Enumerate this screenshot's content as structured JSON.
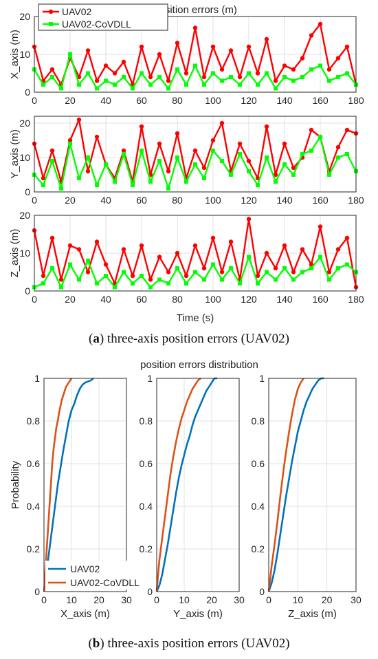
{
  "figure_a": {
    "caption_letter": "a",
    "caption_text": ") three-axis position errors (UAV02)",
    "title": "position errors (m)",
    "xlabel": "Time (s)",
    "legend": [
      "UAV02",
      "UAV02-CoVDLL"
    ]
  },
  "figure_b": {
    "caption_letter": "b",
    "caption_text": ") three-axis position errors (UAV02)",
    "title": "position errors distribution",
    "ylabel": "Probability",
    "legend": [
      "UAV02",
      "UAV02-CoVDLL"
    ]
  },
  "colors": {
    "red": "#ff0000",
    "green": "#00ff00",
    "blue": "#0072bd",
    "orange": "#d95319"
  },
  "chart_data": [
    {
      "type": "line",
      "panel": "X_axis",
      "ylabel": "X_axis (m)",
      "xlim": [
        0,
        180
      ],
      "ylim": [
        0,
        20
      ],
      "xticks": [
        0,
        20,
        40,
        60,
        80,
        100,
        120,
        140,
        160,
        180
      ],
      "yticks": [
        0,
        10,
        20
      ],
      "series": [
        {
          "name": "UAV02",
          "x": [
            0,
            5,
            10,
            15,
            20,
            25,
            30,
            35,
            40,
            45,
            50,
            55,
            60,
            65,
            70,
            75,
            80,
            85,
            90,
            95,
            100,
            105,
            110,
            115,
            120,
            125,
            130,
            135,
            140,
            145,
            150,
            155,
            160,
            165,
            170,
            175,
            180
          ],
          "values": [
            12,
            3,
            6,
            2,
            9,
            4,
            11,
            3,
            7,
            5,
            8,
            2,
            12,
            4,
            10,
            3,
            13,
            5,
            17,
            4,
            12,
            6,
            11,
            4,
            12,
            5,
            14,
            3,
            7,
            6,
            9,
            15,
            18,
            6,
            9,
            12,
            2
          ]
        },
        {
          "name": "UAV02-CoVDLL",
          "x": [
            0,
            5,
            10,
            15,
            20,
            25,
            30,
            35,
            40,
            45,
            50,
            55,
            60,
            65,
            70,
            75,
            80,
            85,
            90,
            95,
            100,
            105,
            110,
            115,
            120,
            125,
            130,
            135,
            140,
            145,
            150,
            155,
            160,
            165,
            170,
            175,
            180
          ],
          "values": [
            6,
            2,
            4,
            1,
            10,
            2,
            5,
            1,
            3,
            2,
            4,
            1,
            5,
            2,
            4,
            1,
            6,
            2,
            7,
            2,
            5,
            3,
            4,
            2,
            5,
            2,
            5,
            1,
            4,
            3,
            4,
            6,
            7,
            3,
            4,
            5,
            2
          ]
        }
      ]
    },
    {
      "type": "line",
      "panel": "Y_axis",
      "ylabel": "Y_axis (m)",
      "xlim": [
        0,
        180
      ],
      "ylim": [
        0,
        22
      ],
      "xticks": [
        0,
        20,
        40,
        60,
        80,
        100,
        120,
        140,
        160,
        180
      ],
      "yticks": [
        0,
        10,
        20
      ],
      "series": [
        {
          "name": "UAV02",
          "x": [
            0,
            5,
            10,
            15,
            20,
            25,
            30,
            35,
            40,
            45,
            50,
            55,
            60,
            65,
            70,
            75,
            80,
            85,
            90,
            95,
            100,
            105,
            110,
            115,
            120,
            125,
            130,
            135,
            140,
            145,
            150,
            155,
            160,
            165,
            170,
            175,
            180
          ],
          "values": [
            14,
            4,
            12,
            3,
            15,
            21,
            6,
            16,
            8,
            4,
            12,
            3,
            19,
            5,
            14,
            6,
            17,
            4,
            12,
            7,
            15,
            20,
            6,
            14,
            9,
            4,
            19,
            5,
            14,
            7,
            10,
            18,
            16,
            6,
            13,
            18,
            17
          ]
        },
        {
          "name": "UAV02-CoVDLL",
          "x": [
            0,
            5,
            10,
            15,
            20,
            25,
            30,
            35,
            40,
            45,
            50,
            55,
            60,
            65,
            70,
            75,
            80,
            85,
            90,
            95,
            100,
            105,
            110,
            115,
            120,
            125,
            130,
            135,
            140,
            145,
            150,
            155,
            160,
            165,
            170,
            175,
            180
          ],
          "values": [
            5,
            2,
            9,
            1,
            14,
            4,
            10,
            2,
            8,
            3,
            11,
            2,
            12,
            3,
            9,
            1,
            10,
            3,
            8,
            4,
            12,
            9,
            5,
            11,
            6,
            2,
            10,
            3,
            8,
            5,
            11,
            12,
            16,
            5,
            10,
            11,
            6
          ]
        }
      ]
    },
    {
      "type": "line",
      "panel": "Z_axis",
      "ylabel": "Z_axis (m)",
      "xlim": [
        0,
        180
      ],
      "ylim": [
        0,
        20
      ],
      "xticks": [
        0,
        20,
        40,
        60,
        80,
        100,
        120,
        140,
        160,
        180
      ],
      "yticks": [
        0,
        10,
        20
      ],
      "series": [
        {
          "name": "UAV02",
          "x": [
            0,
            5,
            10,
            15,
            20,
            25,
            30,
            35,
            40,
            45,
            50,
            55,
            60,
            65,
            70,
            75,
            80,
            85,
            90,
            95,
            100,
            105,
            110,
            115,
            120,
            125,
            130,
            135,
            140,
            145,
            150,
            155,
            160,
            165,
            170,
            175,
            180
          ],
          "values": [
            16,
            4,
            14,
            3,
            12,
            11,
            5,
            13,
            7,
            2,
            11,
            4,
            12,
            3,
            9,
            5,
            10,
            4,
            12,
            6,
            14,
            5,
            13,
            3,
            19,
            4,
            10,
            6,
            12,
            5,
            11,
            7,
            17,
            5,
            11,
            14,
            1
          ]
        },
        {
          "name": "UAV02-CoVDLL",
          "x": [
            0,
            5,
            10,
            15,
            20,
            25,
            30,
            35,
            40,
            45,
            50,
            55,
            60,
            65,
            70,
            75,
            80,
            85,
            90,
            95,
            100,
            105,
            110,
            115,
            120,
            125,
            130,
            135,
            140,
            145,
            150,
            155,
            160,
            165,
            170,
            175,
            180
          ],
          "values": [
            1,
            2,
            6,
            1,
            7,
            3,
            8,
            2,
            4,
            1,
            5,
            2,
            4,
            1,
            3,
            2,
            6,
            2,
            5,
            3,
            7,
            3,
            6,
            2,
            9,
            2,
            5,
            3,
            6,
            3,
            5,
            6,
            9,
            3,
            6,
            7,
            5
          ]
        }
      ]
    },
    {
      "type": "line",
      "panel": "CDF X_axis",
      "xlabel": "X_axis (m)",
      "xlim": [
        0,
        30
      ],
      "ylim": [
        0,
        1
      ],
      "xticks": [
        0,
        10,
        20,
        30
      ],
      "yticks": [
        0,
        0.2,
        0.4,
        0.6,
        0.8,
        1
      ],
      "series": [
        {
          "name": "UAV02",
          "x": [
            0,
            0.5,
            1,
            2,
            3,
            4,
            5,
            6,
            7,
            8,
            9,
            10,
            11,
            12,
            13,
            14,
            15,
            17,
            18
          ],
          "values": [
            0,
            0.05,
            0.1,
            0.2,
            0.3,
            0.4,
            0.5,
            0.58,
            0.66,
            0.73,
            0.8,
            0.85,
            0.88,
            0.92,
            0.95,
            0.97,
            0.98,
            0.99,
            1
          ]
        },
        {
          "name": "UAV02-CoVDLL",
          "x": [
            0,
            0.3,
            0.6,
            1,
            1.5,
            2,
            2.5,
            3,
            3.5,
            4,
            4.5,
            5,
            5.5,
            6,
            6.5,
            7,
            7.5,
            8,
            8.5,
            9,
            9.5,
            10
          ],
          "values": [
            0,
            0.05,
            0.12,
            0.2,
            0.3,
            0.4,
            0.5,
            0.6,
            0.67,
            0.72,
            0.77,
            0.8,
            0.84,
            0.87,
            0.9,
            0.92,
            0.94,
            0.96,
            0.97,
            0.98,
            0.99,
            1
          ]
        }
      ]
    },
    {
      "type": "line",
      "panel": "CDF Y_axis",
      "xlabel": "Y_axis (m)",
      "xlim": [
        0,
        30
      ],
      "ylim": [
        0,
        1
      ],
      "xticks": [
        0,
        10,
        20,
        30
      ],
      "yticks": [
        0,
        0.2,
        0.4,
        0.6,
        0.8,
        1
      ],
      "series": [
        {
          "name": "UAV02",
          "x": [
            0,
            1,
            2,
            3,
            4,
            5,
            6,
            7,
            8,
            9,
            10,
            11,
            12,
            13,
            14,
            15,
            16,
            17,
            18,
            19,
            20,
            21,
            22
          ],
          "values": [
            0,
            0.03,
            0.08,
            0.15,
            0.22,
            0.3,
            0.38,
            0.46,
            0.53,
            0.59,
            0.64,
            0.69,
            0.73,
            0.78,
            0.82,
            0.85,
            0.88,
            0.91,
            0.94,
            0.96,
            0.98,
            1,
            1
          ]
        },
        {
          "name": "UAV02-CoVDLL",
          "x": [
            0,
            0.5,
            1,
            2,
            3,
            4,
            5,
            6,
            7,
            8,
            9,
            10,
            11,
            12,
            13,
            14,
            15,
            16
          ],
          "values": [
            0,
            0.08,
            0.15,
            0.25,
            0.35,
            0.45,
            0.55,
            0.63,
            0.7,
            0.76,
            0.81,
            0.85,
            0.89,
            0.92,
            0.95,
            0.97,
            0.99,
            1
          ]
        }
      ]
    },
    {
      "type": "line",
      "panel": "CDF Z_axis",
      "xlabel": "Z_axis (m)",
      "xlim": [
        0,
        30
      ],
      "ylim": [
        0,
        1
      ],
      "xticks": [
        0,
        10,
        20,
        30
      ],
      "yticks": [
        0,
        0.2,
        0.4,
        0.6,
        0.8,
        1
      ],
      "series": [
        {
          "name": "UAV02",
          "x": [
            0,
            1,
            2,
            3,
            4,
            5,
            6,
            7,
            8,
            9,
            10,
            11,
            12,
            13,
            14,
            15,
            16,
            17,
            18,
            19
          ],
          "values": [
            0,
            0.04,
            0.1,
            0.18,
            0.27,
            0.36,
            0.45,
            0.53,
            0.61,
            0.68,
            0.75,
            0.8,
            0.85,
            0.89,
            0.92,
            0.95,
            0.97,
            0.99,
            1,
            1
          ]
        },
        {
          "name": "UAV02-CoVDLL",
          "x": [
            0,
            0.5,
            1,
            2,
            3,
            4,
            5,
            6,
            7,
            8,
            9,
            10,
            11,
            12
          ],
          "values": [
            0,
            0.06,
            0.12,
            0.22,
            0.33,
            0.45,
            0.56,
            0.66,
            0.75,
            0.83,
            0.9,
            0.95,
            0.98,
            1
          ]
        }
      ]
    }
  ]
}
